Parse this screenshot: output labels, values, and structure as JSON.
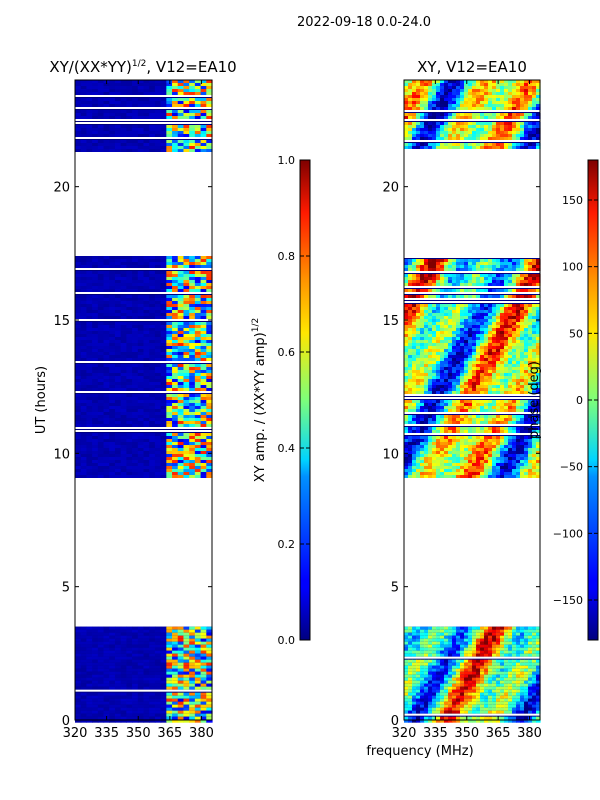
{
  "suptitle": "2022-09-18 0.0-24.0",
  "xlabel_shared": "frequency (MHz)",
  "chart_data": [
    {
      "type": "heatmap",
      "title_prefix": "XY/(XX*YY)",
      "title_exp": "1/2",
      "title_suffix": ", V12=EA10",
      "ylabel": "UT (hours)",
      "xlim": [
        320,
        385
      ],
      "ylim": [
        0,
        24
      ],
      "xticks": [
        "320",
        "335",
        "350",
        "365",
        "380"
      ],
      "xtick_values": [
        320,
        335,
        350,
        365,
        380
      ],
      "yticks": [
        "0",
        "5",
        "10",
        "15",
        "20"
      ],
      "ytick_values": [
        0,
        5,
        10,
        15,
        20
      ],
      "data_ranges_hours": [
        [
          0,
          3.5
        ],
        [
          9.1,
          17.4
        ],
        [
          21.4,
          24
        ]
      ],
      "colorbar": {
        "label_prefix": "XY amp. / (XX*YY amp)",
        "label_exp": "1/2",
        "min": 0.0,
        "max": 1.0,
        "ticks": [
          "0.0",
          "0.2",
          "0.4",
          "0.6",
          "0.8",
          "1.0"
        ],
        "tick_values": [
          0.0,
          0.2,
          0.4,
          0.6,
          0.8,
          1.0
        ]
      }
    },
    {
      "type": "heatmap",
      "title": "XY, V12=EA10",
      "xlim": [
        320,
        385
      ],
      "ylim": [
        0,
        24
      ],
      "xticks": [
        "320",
        "335",
        "350",
        "365",
        "380"
      ],
      "xtick_values": [
        320,
        335,
        350,
        365,
        380
      ],
      "yticks": [
        "0",
        "5",
        "10",
        "15",
        "20"
      ],
      "ytick_values": [
        0,
        5,
        10,
        15,
        20
      ],
      "data_ranges_hours": [
        [
          0,
          3.5
        ],
        [
          9.1,
          17.4
        ],
        [
          21.4,
          24
        ]
      ],
      "colorbar": {
        "label": "phase (deg)",
        "min": -180,
        "max": 180,
        "ticks": [
          "−150",
          "−100",
          "−50",
          "0",
          "50",
          "100",
          "150"
        ],
        "tick_values": [
          -150,
          -100,
          -50,
          0,
          50,
          100,
          150
        ]
      }
    }
  ]
}
